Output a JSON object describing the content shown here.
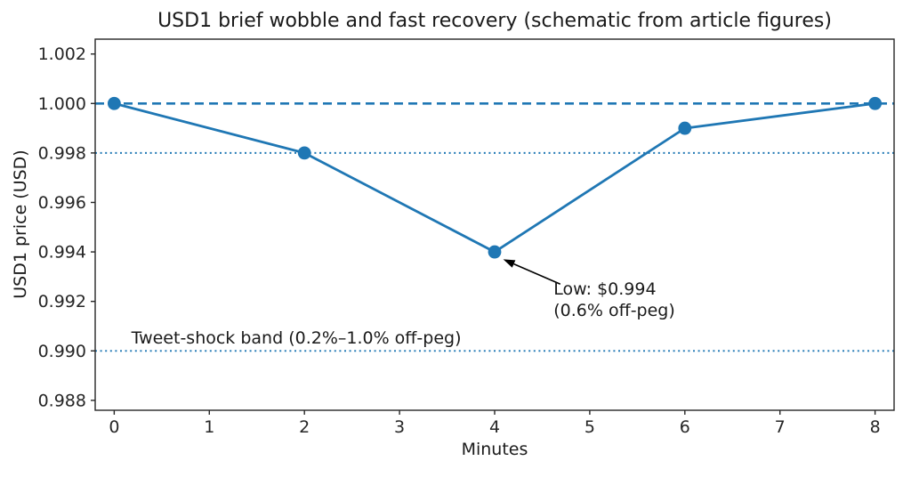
{
  "chart_data": {
    "type": "line",
    "title": "USD1 brief wobble and fast recovery (schematic from article figures)",
    "xlabel": "Minutes",
    "ylabel": "USD1 price (USD)",
    "x": [
      0,
      2,
      4,
      6,
      8
    ],
    "series": [
      {
        "name": "USD1 price",
        "values": [
          1.0,
          0.998,
          0.994,
          0.999,
          1.0
        ]
      }
    ],
    "xlim": [
      -0.2,
      8.2
    ],
    "ylim": [
      0.9876,
      1.0026
    ],
    "xticks": {
      "values": [
        0,
        1,
        2,
        3,
        4,
        5,
        6,
        7,
        8
      ],
      "labels": [
        "0",
        "1",
        "2",
        "3",
        "4",
        "5",
        "6",
        "7",
        "8"
      ]
    },
    "yticks": {
      "values": [
        0.988,
        0.99,
        0.992,
        0.994,
        0.996,
        0.998,
        1.0,
        1.002
      ],
      "labels": [
        "0.988",
        "0.990",
        "0.992",
        "0.994",
        "0.996",
        "0.998",
        "1.000",
        "1.002"
      ]
    },
    "grid": false,
    "legend": "none",
    "line_color": "#1f77b4",
    "marker": "circle",
    "marker_color": "#1f77b4",
    "spine_color": "#262626",
    "ref_lines": [
      {
        "name": "peg-line",
        "y": 1.0,
        "style": "dashed",
        "color": "#1f77b4"
      },
      {
        "name": "band-upper-line",
        "y": 0.998,
        "style": "dotted",
        "color": "#1f77b4"
      },
      {
        "name": "band-lower-line",
        "y": 0.99,
        "style": "dotted",
        "color": "#1f77b4"
      }
    ],
    "annotations": [
      {
        "name": "low-annotation",
        "text": "Low: $0.994\n(0.6% off-peg)",
        "text_xy": [
          4.62,
          0.9929
        ],
        "arrow_from": [
          4.69,
          0.9927
        ],
        "arrow_to": [
          4.09,
          0.9937
        ],
        "arrow_color": "#000000"
      },
      {
        "name": "band-label",
        "text": "Tweet-shock band (0.2%–1.0% off-peg)",
        "text_xy": [
          0.18,
          0.9909
        ]
      }
    ]
  }
}
